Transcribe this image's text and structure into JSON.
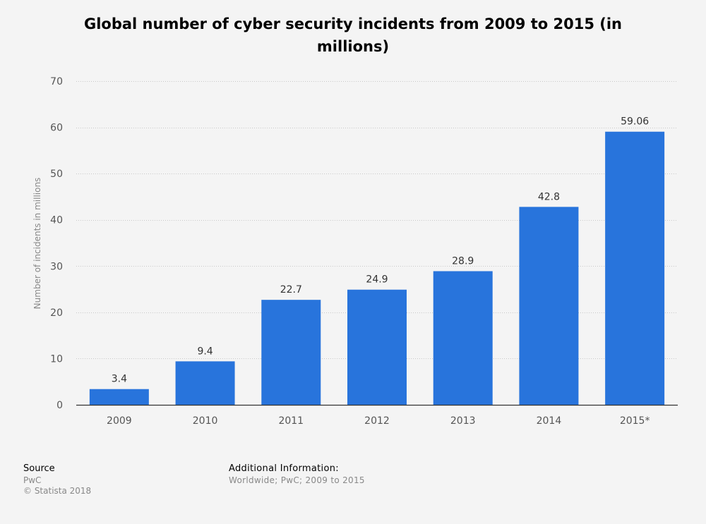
{
  "chart_data": {
    "type": "bar",
    "title": "Global number of cyber security incidents from 2009 to 2015 (in millions)",
    "xlabel": "",
    "ylabel": "Number of incidents in millions",
    "categories": [
      "2009",
      "2010",
      "2011",
      "2012",
      "2013",
      "2014",
      "2015*"
    ],
    "values": [
      3.4,
      9.4,
      22.7,
      24.9,
      28.9,
      42.8,
      59.06
    ],
    "value_labels": [
      "3.4",
      "9.4",
      "22.7",
      "24.9",
      "28.9",
      "42.8",
      "59.06"
    ],
    "ylim": [
      0,
      70
    ],
    "yticks": [
      0,
      10,
      20,
      30,
      40,
      50,
      60,
      70
    ],
    "grid": true,
    "bar_color": "#2874dc",
    "legend": "none"
  },
  "footer": {
    "source_label": "Source",
    "source_value": "PwC",
    "copyright": "© Statista 2018",
    "info_label": "Additional Information:",
    "info_value": "Worldwide; PwC; 2009 to 2015"
  }
}
